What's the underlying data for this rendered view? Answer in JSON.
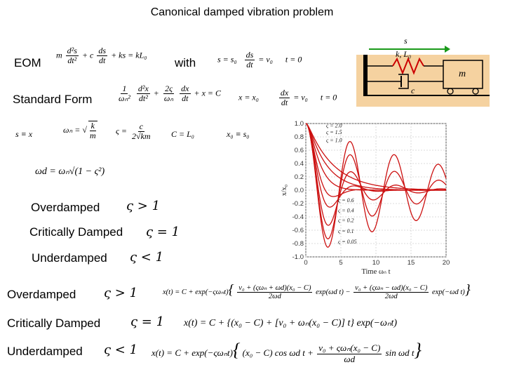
{
  "title": "Canonical damped vibration problem",
  "labels": {
    "eom": "EOM",
    "with": "with",
    "standard_form": "Standard Form",
    "overdamped_1": "Overdamped",
    "critically_damped_1": "Critically Damped",
    "underdamped_1": "Underdamped",
    "overdamped_2": "Overdamped",
    "critically_damped_2": "Critically Damped",
    "underdamped_2": "Underdamped"
  },
  "conditions": {
    "over": "ς > 1",
    "crit": "ς = 1",
    "under": "ς < 1"
  },
  "equations": {
    "eom_lhs_a": "m",
    "eom_num_a": "d²s",
    "eom_den_a": "dt²",
    "eom_mid": "+ c",
    "eom_num_b": "ds",
    "eom_den_b": "dt",
    "eom_rhs": "+ ks = kL₀",
    "ic1": "s = s₀",
    "ic1_num": "ds",
    "ic1_den": "dt",
    "ic1_rhs": "= v₀",
    "ic1_t": "t = 0",
    "sf_a_num": "1",
    "sf_a_den": "ωₙ²",
    "sf_b_num": "d²x",
    "sf_b_den": "dt²",
    "sf_plus": "+",
    "sf_c_num": "2ς",
    "sf_c_den": "ωₙ",
    "sf_d_num": "dx",
    "sf_d_den": "dt",
    "sf_rhs": "+ x = C",
    "ic2": "x = x₀",
    "ic2_num": "dx",
    "ic2_den": "dt",
    "ic2_rhs": "= v₀",
    "ic2_t": "t = 0",
    "def_s": "s ≡ x",
    "def_wn_lhs": "ωₙ =",
    "def_wn_num": "k",
    "def_wn_den": "m",
    "def_z_lhs": "ς =",
    "def_z_num": "c",
    "def_z_den": "2√km",
    "def_C": "C = L₀",
    "def_x0": "x₀ ≡ s₀",
    "def_wd": "ωd = ωₙ√(1 − ς²)",
    "sol_over": "x(t) = C + exp(−ςωₙt){ [v₀ + (ςωₙ + ωd)(x₀ − C)] / 2ωd · exp(ωd t) − [v₀ + (ςωₙ − ωd)(x₀ − C)] / 2ωd · exp(−ωd t) }",
    "sol_over_a": "x(t) = C + exp(−ςωₙt)",
    "sol_over_n1": "v₀ + (ςωₙ + ωd)(x₀ − C)",
    "sol_over_d1": "2ωd",
    "sol_over_e1": "exp(ωd t) −",
    "sol_over_n2": "v₀ + (ςωₙ − ωd)(x₀ − C)",
    "sol_over_d2": "2ωd",
    "sol_over_e2": "exp(−ωd t)",
    "sol_crit": "x(t) = C + {(x₀ − C) + [v₀ + ωₙ(x₀ − C)] t} exp(−ωₙt)",
    "sol_under_a": "x(t) = C + exp(−ςωₙt)",
    "sol_under_b": "(x₀ − C) cos ωd t +",
    "sol_under_n": "v₀ + ςωₙ(x₀ − C)",
    "sol_under_d": "ωd",
    "sol_under_c": "sin ωd t"
  },
  "diagram": {
    "s_label": "s",
    "spring_label": "k, L₀",
    "damper_label": "c",
    "mass_label": "m",
    "colors": {
      "ground": "#f5d2a0",
      "arrow": "#1a9a1a",
      "spring": "#cc0000",
      "line": "#000000"
    }
  },
  "chart_data": {
    "type": "line",
    "xlabel": "Time ωₙ t",
    "ylabel": "x/x₀",
    "xlim": [
      0,
      20
    ],
    "ylim": [
      -1.0,
      1.0
    ],
    "xticks": [
      "0",
      "5",
      "10",
      "15",
      "20"
    ],
    "yticks": [
      "1.0",
      "0.8",
      "0.6",
      "0.4",
      "0.2",
      "0.0",
      "-0.2",
      "-0.4",
      "-0.6",
      "-0.8",
      "-1.0"
    ],
    "grid": true,
    "line_color": "#cc1010",
    "annotations": [
      "ς = 2.0",
      "ς = 1.5",
      "ς = 1.0",
      "ς = 0.6",
      "ς = 0.4",
      "ς = 0.2",
      "ς = 0.1",
      "ς = 0.05"
    ],
    "zetas": [
      2.0,
      1.5,
      1.0,
      0.6,
      0.4,
      0.2,
      0.1,
      0.05
    ]
  }
}
